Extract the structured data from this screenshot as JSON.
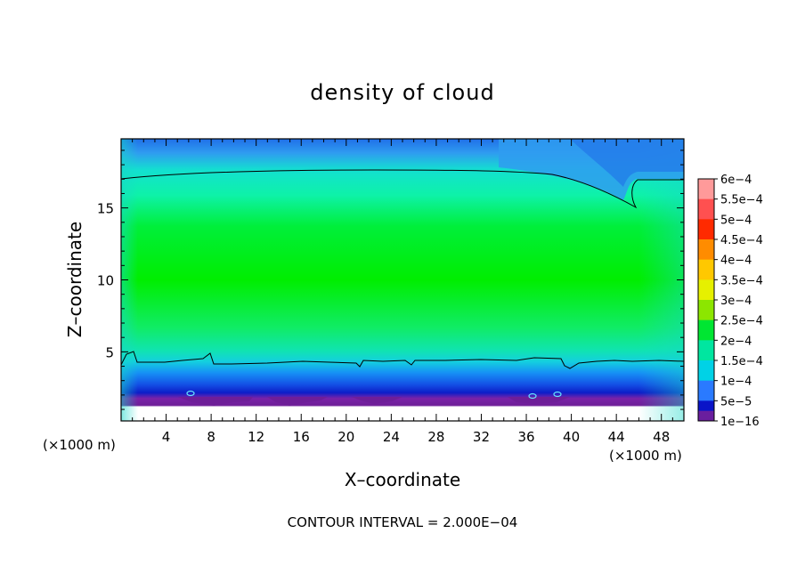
{
  "chart_data": {
    "type": "heatmap",
    "title": "density of cloud",
    "xlabel": "X–coordinate",
    "ylabel": "Z–coordinate",
    "x_unit_left": "(×1000 m)",
    "x_unit_right": "(×1000 m)",
    "xlim": [
      0,
      50
    ],
    "ylim": [
      0.2,
      19.8
    ],
    "x_ticks": [
      4,
      8,
      12,
      16,
      20,
      24,
      28,
      32,
      36,
      40,
      44,
      48
    ],
    "y_ticks": [
      5,
      10,
      15
    ],
    "footer": "CONTOUR INTERVAL = 2.000E−04",
    "colorbar": {
      "labels": [
        "6e−4",
        "5.5e−4",
        "5e−4",
        "4.5e−4",
        "4e−4",
        "3.5e−4",
        "3e−4",
        "2.5e−4",
        "2e−4",
        "1.5e−4",
        "1e−4",
        "5e−5",
        "1e−16"
      ],
      "colors": [
        "#ff9a9a",
        "#ff5050",
        "#ff2a00",
        "#ff8c00",
        "#ffc800",
        "#e6f000",
        "#8ce600",
        "#00e632",
        "#00e6a0",
        "#00d2e6",
        "#2a7aff",
        "#0a14c8",
        "#6a1e9e"
      ]
    },
    "contour_level": "2e−4",
    "grid": false,
    "legend": "right"
  }
}
